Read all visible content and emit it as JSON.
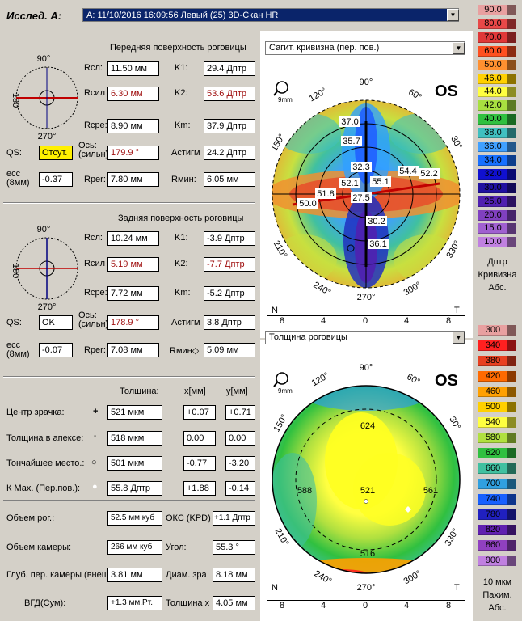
{
  "header": {
    "title": "Исслед. А:",
    "exam_value": "А: 11/10/2016 16:09:56 Левый (25) 3D-Скан HR"
  },
  "anterior": {
    "section_title": "Передняя поверхность роговицы",
    "labels": {
      "rsl": "Rсл:",
      "rsil": "Rсил",
      "rsre": "Rсре:",
      "k1": "K1:",
      "k2": "K2:",
      "km": "Km:",
      "qs": "QS:",
      "axis": "Ось:",
      "axis2": "(сильн)",
      "astig": "Астигм",
      "ecc": "ecc",
      "ecc2": "(8мм)",
      "rper": "Rper:",
      "rmin": "Rмин:"
    },
    "rsl": "11.50 мм",
    "rsil": "6.30 мм",
    "rsre": "8.90 мм",
    "k1": "29.4 Дптр",
    "k2": "53.6 Дптр",
    "km": "37.9 Дптр",
    "qs": "Отсут.",
    "axis": "179.9 °",
    "astig": "24.2 Дптр",
    "ecc": "-0.37",
    "rper": "7.80 мм",
    "rmin": "6.05 мм",
    "dial": {
      "top": "90°",
      "left": "180",
      "bottom": "270°"
    }
  },
  "posterior": {
    "section_title": "Задняя поверхность роговицы",
    "labels": {
      "rsl": "Rсл:",
      "rsil": "Rсил",
      "rsre": "Rсре:",
      "k1": "K1:",
      "k2": "K2:",
      "km": "Km:",
      "qs": "QS:",
      "axis": "Ось:",
      "axis2": "(сильн)",
      "astig": "Астигм",
      "ecc": "ecc",
      "ecc2": "(8мм)",
      "rper": "Rper:",
      "rmin": "Rмин◇"
    },
    "rsl": "10.24 мм",
    "rsil": "5.19 мм",
    "rsre": "7.72 мм",
    "k1": "-3.9 Дптр",
    "k2": "-7.7 Дптр",
    "km": "-5.2 Дптр",
    "qs": "OK",
    "axis": "178.9 °",
    "astig": "3.8 Дптр",
    "ecc": "-0.07",
    "rper": "7.08 мм",
    "rmin": "5.09 мм",
    "dial": {
      "top": "90°",
      "left": "180",
      "bottom": "270°"
    }
  },
  "thickness": {
    "headers": {
      "thick": "Толщина:",
      "x": "x[мм]",
      "y": "y[мм]"
    },
    "rows": [
      {
        "label": "Центр зрачка:",
        "sym": "+",
        "thick": "521 мкм",
        "x": "+0.07",
        "y": "+0.71"
      },
      {
        "label": "Толщина в апексе:",
        "sym": "·",
        "thick": "518 мкм",
        "x": "0.00",
        "y": "0.00"
      },
      {
        "label": "Тончайшее место.:",
        "sym": "○",
        "thick": "501 мкм",
        "x": "-0.77",
        "y": "-3.20"
      },
      {
        "label": "К Мах. (Пер.пов.):",
        "sym": "●",
        "thick": "55.8 Дптр",
        "x": "+1.88",
        "y": "-0.14"
      }
    ]
  },
  "volume": {
    "cornea_label": "Объем рог.:",
    "cornea": "52.5 мм куб",
    "okc_label": "ОКС (KPD)",
    "okc": "+1.1 Дптр",
    "chamber_label": "Объем камеры:",
    "chamber": "266 мм куб",
    "angle_label": "Угол:",
    "angle": "55.3 °",
    "depth_label": "Глуб. пер. камеры (внеш",
    "depth": "3.81 мм",
    "pupil_label": "Диам. зра",
    "pupil": "8.18 мм",
    "iop_label": "ВГД(Сум):",
    "iop": "+1.3 мм.Рт.",
    "thick_label": "Толщина х",
    "thick": "4.05 мм"
  },
  "map1": {
    "selector": "Сагит. кривизна (пер. пов.)",
    "eye": "OS",
    "zoom": "9mm",
    "values": [
      "37.0",
      "35.7",
      "32.3",
      "52.1",
      "55.1",
      "54.4",
      "52.2",
      "51.8",
      "50.0",
      "27.5",
      "30.2",
      "36.1"
    ],
    "angles": [
      "90°",
      "120°",
      "60°",
      "150°",
      "30°",
      "210°",
      "330°",
      "240°",
      "300°",
      "270°"
    ],
    "N": "N",
    "T": "T",
    "axis": [
      "8",
      "4",
      "0",
      "4",
      "8"
    ]
  },
  "map2": {
    "selector": "Толщина роговицы",
    "eye": "OS",
    "zoom": "9mm",
    "values": [
      "624",
      "588",
      "521",
      "561",
      "516"
    ],
    "angles": [
      "90°",
      "120°",
      "60°",
      "150°",
      "30°",
      "210°",
      "330°",
      "240°",
      "300°",
      "270°"
    ],
    "N": "N",
    "T": "T",
    "axis": [
      "8",
      "4",
      "0",
      "4",
      "8"
    ]
  },
  "scale1": {
    "values": [
      "90.0",
      "80.0",
      "70.0",
      "60.0",
      "50.0",
      "46.0",
      "44.0",
      "42.0",
      "40.0",
      "38.0",
      "36.0",
      "34.0",
      "32.0",
      "30.0",
      "25.0",
      "20.0",
      "15.0",
      "10.0"
    ],
    "colors": [
      "#e8a0a0",
      "#e84848",
      "#e03838",
      "#ff5020",
      "#ff9030",
      "#ffd000",
      "#ffff40",
      "#a8e040",
      "#30c040",
      "#40c0c0",
      "#40a0ff",
      "#1870ff",
      "#1010d0",
      "#2010a0",
      "#5020b0",
      "#8040c0",
      "#a060d0",
      "#c080e0"
    ],
    "unit": "Дптр",
    "name": "Кривизна",
    "mode": "Абс."
  },
  "scale2": {
    "values": [
      "300",
      "340",
      "380",
      "420",
      "460",
      "500",
      "540",
      "580",
      "620",
      "660",
      "700",
      "740",
      "780",
      "820",
      "860",
      "900"
    ],
    "colors": [
      "#e8a0a0",
      "#ff2020",
      "#e84020",
      "#ff6a00",
      "#ffa000",
      "#ffd000",
      "#ffff40",
      "#b0e040",
      "#30c040",
      "#40c0a0",
      "#30a0e0",
      "#1860ff",
      "#2020c0",
      "#6020b0",
      "#9040c0",
      "#c080e0"
    ],
    "unit": "10 мкм",
    "name": "Пахим.",
    "mode": "Абс."
  }
}
